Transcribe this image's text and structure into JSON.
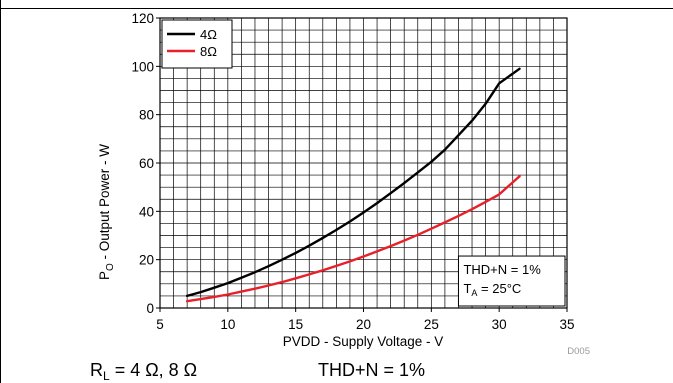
{
  "chart_data": {
    "type": "line",
    "xlabel": "PVDD - Supply Voltage - V",
    "ylabel_main": "P",
    "ylabel_sub": "O",
    "ylabel_rest": " - Output Power - W",
    "xlim": [
      5,
      35
    ],
    "ylim": [
      0,
      120
    ],
    "x_ticks": [
      "5",
      "10",
      "15",
      "20",
      "25",
      "30",
      "35"
    ],
    "y_ticks": [
      "0",
      "20",
      "40",
      "60",
      "80",
      "100",
      "120"
    ],
    "grid": true,
    "legend_position": "top-left",
    "series": [
      {
        "name": "4Ω",
        "color": "#000000",
        "x": [
          7,
          8,
          9,
          10,
          11,
          12,
          13,
          14,
          15,
          16,
          17,
          18,
          19,
          20,
          21,
          22,
          23,
          24,
          25,
          26,
          27,
          28,
          29,
          30,
          31.5
        ],
        "y": [
          5,
          6.6,
          8.4,
          10.3,
          12.5,
          14.8,
          17.3,
          20,
          22.8,
          25.8,
          29,
          32.3,
          35.8,
          39.5,
          43.4,
          47.5,
          51.7,
          56.1,
          60.5,
          65.5,
          71.5,
          77.5,
          84.5,
          93,
          99
        ]
      },
      {
        "name": "8Ω",
        "color": "#e8202a",
        "x": [
          7,
          8,
          9,
          10,
          11,
          12,
          13,
          14,
          15,
          16,
          17,
          18,
          19,
          20,
          21,
          22,
          23,
          24,
          25,
          26,
          27,
          28,
          29,
          30,
          31.5
        ],
        "y": [
          2.8,
          3.7,
          4.6,
          5.6,
          6.8,
          8.0,
          9.3,
          10.7,
          12.3,
          13.9,
          15.6,
          17.4,
          19.3,
          21.3,
          23.4,
          25.6,
          27.9,
          30.3,
          32.8,
          35.4,
          38.1,
          40.9,
          43.9,
          47.0,
          54.5
        ]
      }
    ],
    "annotation": {
      "line1": "THD+N = 1%",
      "line2_main": "T",
      "line2_sub": "A",
      "line2_rest": " = 25°C"
    },
    "figure_id": "D005"
  },
  "caption": {
    "left_main": "R",
    "left_sub": "L",
    "left_rest": " = 4 Ω, 8 Ω",
    "right": "THD+N = 1%"
  }
}
